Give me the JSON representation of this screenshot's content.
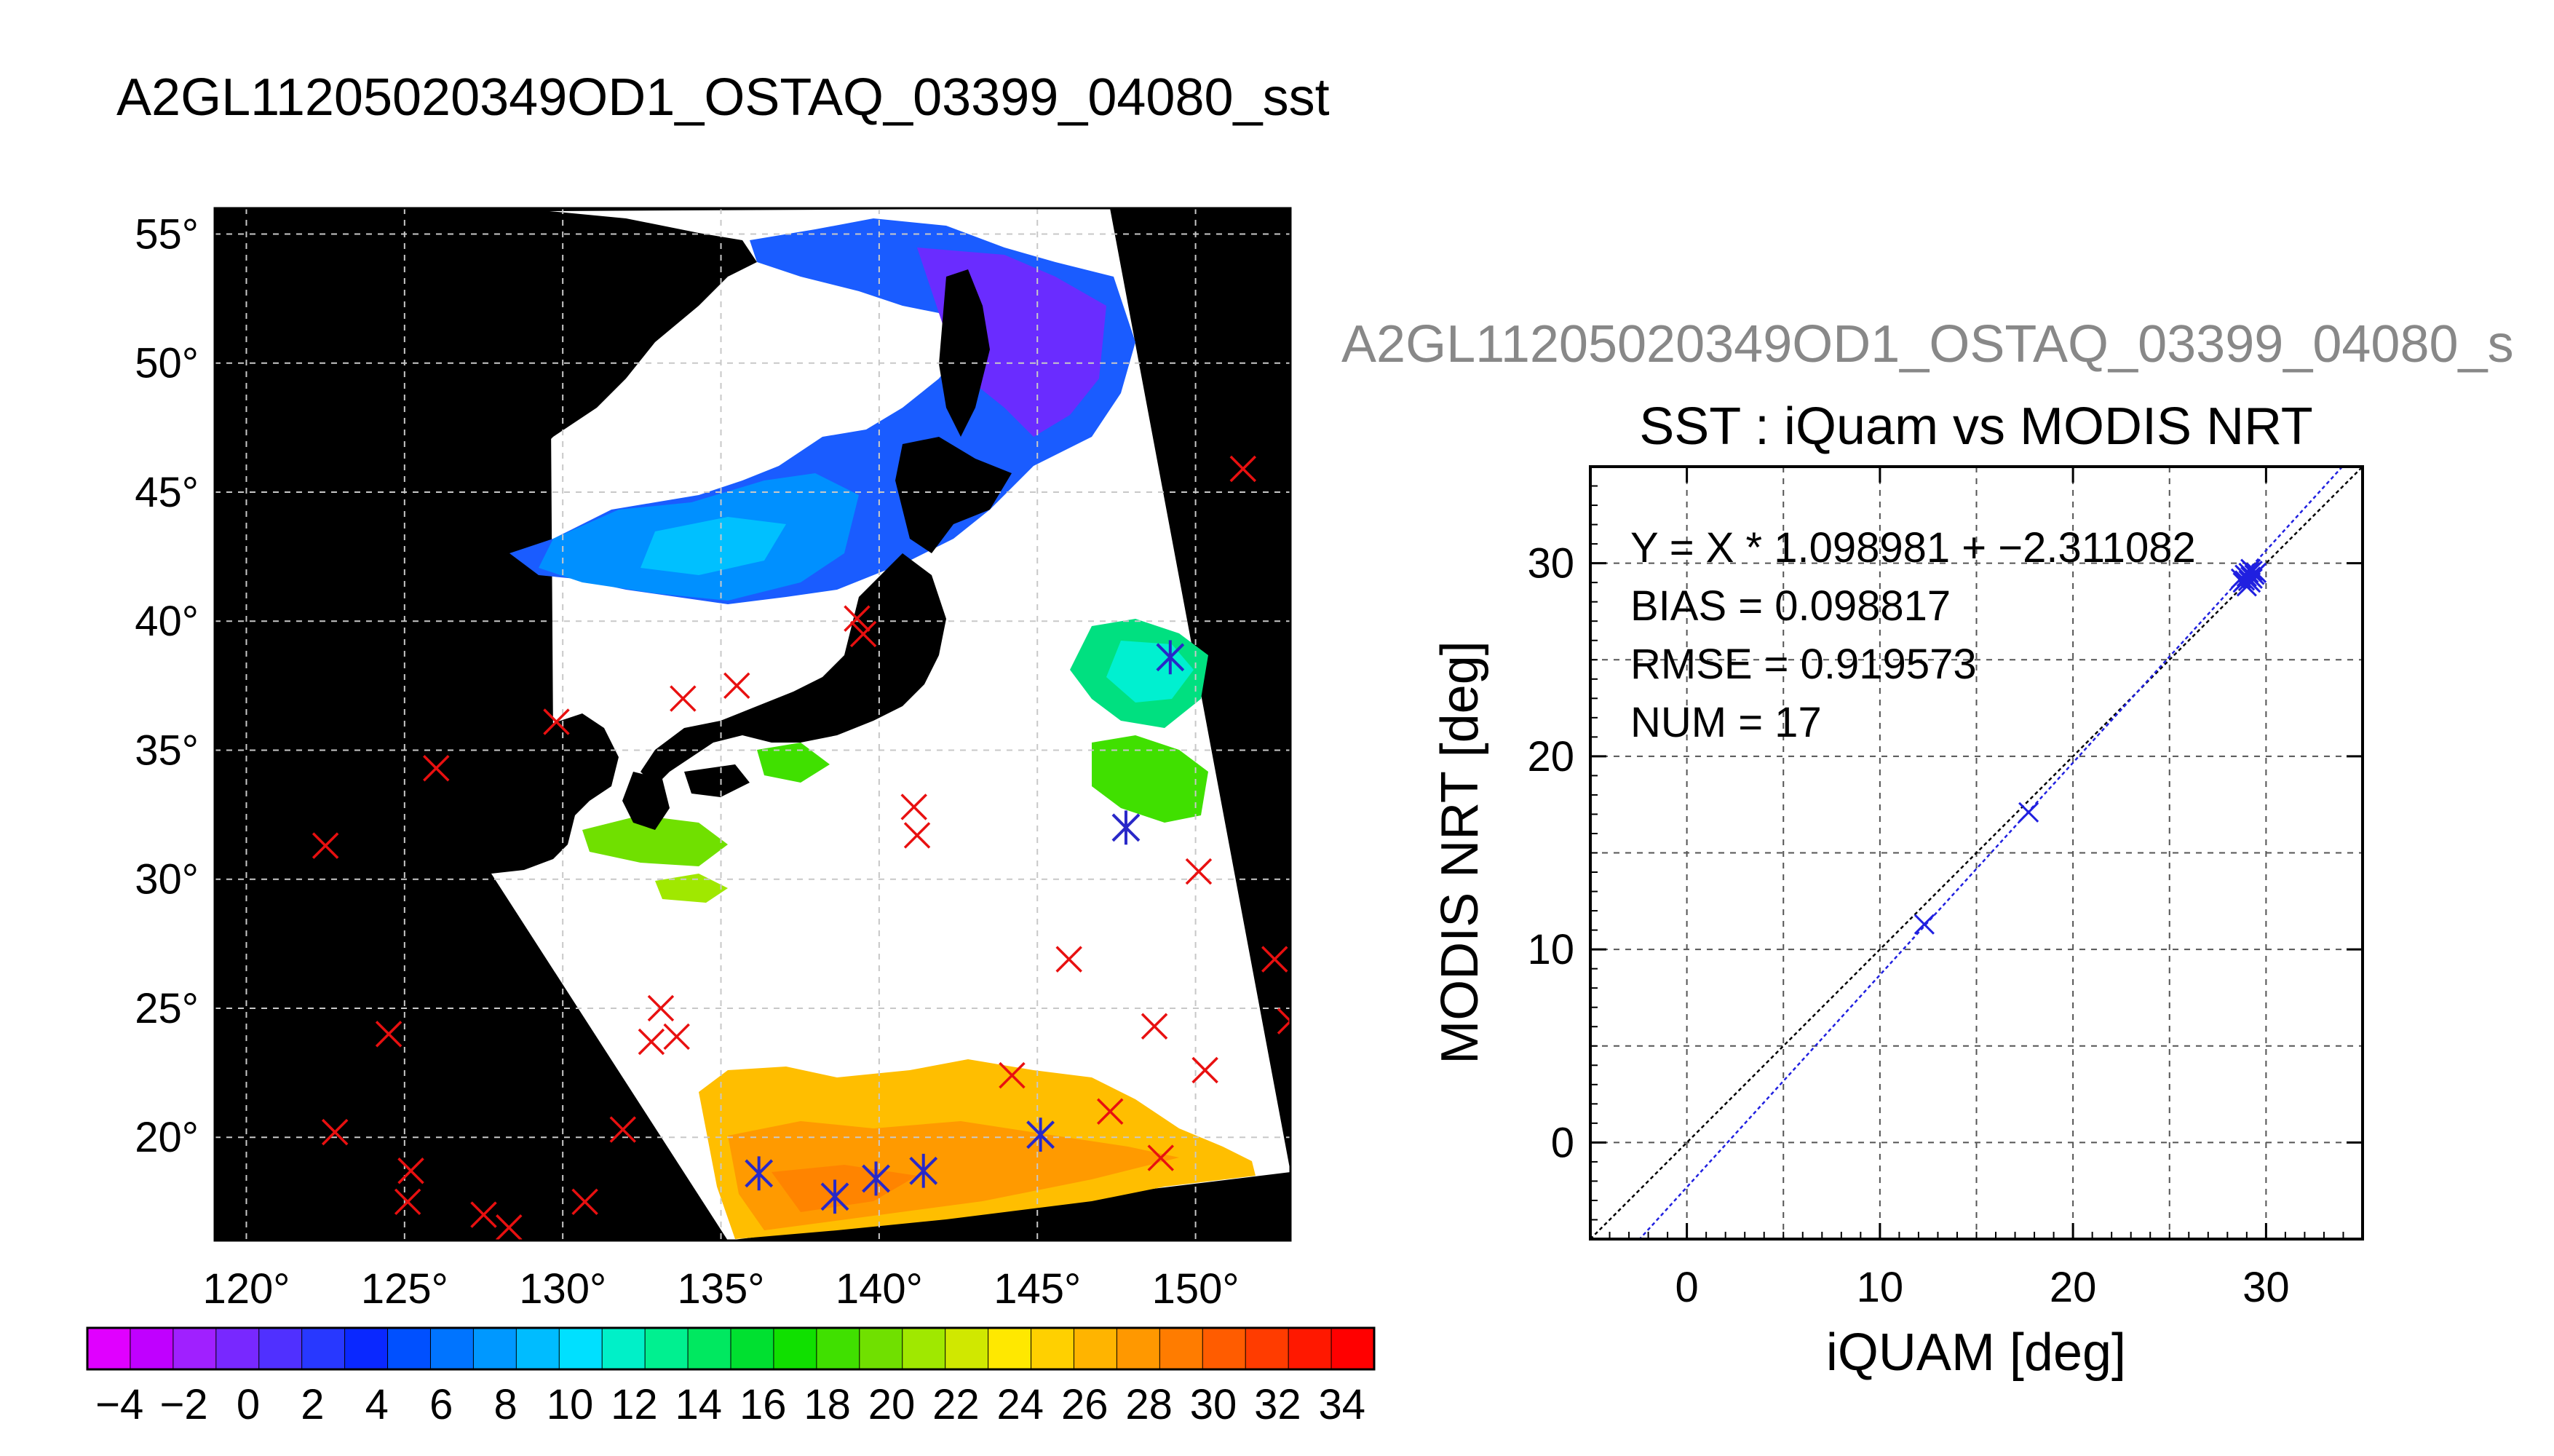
{
  "title": "A2GL11205020349OD1_OSTAQ_03399_04080_sst",
  "subtitle": "A2GL11205020349OD1_OSTAQ_03399_04080_s",
  "chart_data": [
    {
      "type": "map",
      "lon_ticks": [
        "120°",
        "125°",
        "130°",
        "135°",
        "140°",
        "145°",
        "150°"
      ],
      "lat_ticks": [
        "55°",
        "50°",
        "45°",
        "40°",
        "35°",
        "30°",
        "25°",
        "20°"
      ],
      "lon_range": [
        119,
        153
      ],
      "lat_range": [
        16,
        56
      ],
      "colorbar": {
        "range": [
          -5,
          35
        ],
        "tick_labels": [
          "-4",
          "-2",
          "0",
          "2",
          "4",
          "6",
          "8",
          "10",
          "12",
          "14",
          "16",
          "18",
          "20",
          "22",
          "24",
          "26",
          "28",
          "30",
          "32",
          "34"
        ],
        "colors": [
          "#e000ff",
          "#c000ff",
          "#a020ff",
          "#7828ff",
          "#5030ff",
          "#2838ff",
          "#0a28ff",
          "#0050ff",
          "#0074ff",
          "#0098ff",
          "#00bcff",
          "#00e0ff",
          "#00f0c8",
          "#00f090",
          "#00e860",
          "#00e030",
          "#10e000",
          "#40e000",
          "#70e000",
          "#a0e800",
          "#d0e800",
          "#ffe800",
          "#ffd000",
          "#ffb400",
          "#ff9800",
          "#ff7c00",
          "#ff5c00",
          "#ff3c00",
          "#ff1800",
          "#ff0000"
        ]
      },
      "matchups_red_x": [
        [
          122.5,
          31.3
        ],
        [
          124.5,
          24.0
        ],
        [
          122.8,
          20.2
        ],
        [
          125.2,
          18.7
        ],
        [
          125.1,
          17.5
        ],
        [
          127.5,
          17.0
        ],
        [
          128.3,
          16.5
        ],
        [
          130.7,
          17.5
        ],
        [
          131.9,
          20.3
        ],
        [
          126.0,
          34.3
        ],
        [
          129.8,
          36.1
        ],
        [
          133.8,
          37.0
        ],
        [
          135.5,
          37.5
        ],
        [
          139.3,
          40.1
        ],
        [
          139.5,
          39.5
        ],
        [
          141.1,
          32.8
        ],
        [
          141.2,
          31.7
        ],
        [
          132.8,
          23.7
        ],
        [
          133.1,
          25.0
        ],
        [
          133.6,
          23.9
        ],
        [
          144.2,
          22.4
        ],
        [
          146.0,
          26.9
        ],
        [
          147.3,
          21.0
        ],
        [
          148.7,
          24.3
        ],
        [
          148.9,
          19.2
        ],
        [
          150.1,
          30.3
        ],
        [
          150.3,
          22.6
        ],
        [
          151.5,
          45.9
        ],
        [
          152.5,
          26.9
        ],
        [
          153.0,
          24.5
        ]
      ],
      "matchups_blue_star": [
        [
          136.2,
          18.6
        ],
        [
          138.6,
          17.7
        ],
        [
          139.9,
          18.4
        ],
        [
          141.4,
          18.7
        ],
        [
          145.1,
          20.1
        ],
        [
          147.8,
          32.0
        ],
        [
          149.2,
          38.6
        ]
      ]
    },
    {
      "type": "scatter",
      "title": "SST : iQuam vs MODIS NRT",
      "xlabel": "iQUAM [deg]",
      "ylabel": "MODIS NRT [deg]",
      "xlim": [
        -5,
        35
      ],
      "ylim": [
        -5,
        35
      ],
      "xticks": [
        0,
        10,
        20,
        30
      ],
      "yticks": [
        0,
        10,
        20,
        30
      ],
      "grid": true,
      "stats": {
        "fit": "Y = X * 1.098981 + −2.311082",
        "bias": "BIAS = 0.098817",
        "rmse": "RMSE = 0.919573",
        "num": "NUM = 17"
      },
      "fit_line": {
        "slope": 1.098981,
        "intercept": -2.311082
      },
      "points": [
        {
          "x": 12.3,
          "y": 11.3
        },
        {
          "x": 17.7,
          "y": 17.1
        },
        {
          "x": 28.7,
          "y": 29.2
        },
        {
          "x": 28.9,
          "y": 29.4
        },
        {
          "x": 29.0,
          "y": 28.8
        },
        {
          "x": 29.1,
          "y": 29.1
        },
        {
          "x": 29.2,
          "y": 29.3
        },
        {
          "x": 29.3,
          "y": 29.6
        },
        {
          "x": 29.0,
          "y": 29.3
        },
        {
          "x": 29.4,
          "y": 29.4
        },
        {
          "x": 28.8,
          "y": 29.0
        },
        {
          "x": 29.2,
          "y": 29.0
        },
        {
          "x": 29.5,
          "y": 29.5
        },
        {
          "x": 28.9,
          "y": 29.1
        },
        {
          "x": 29.1,
          "y": 29.5
        },
        {
          "x": 29.3,
          "y": 29.2
        },
        {
          "x": 29.2,
          "y": 29.7
        }
      ],
      "point_color": "#2020e0",
      "fit_color": "#2020e0",
      "identity_color": "#000000"
    }
  ]
}
